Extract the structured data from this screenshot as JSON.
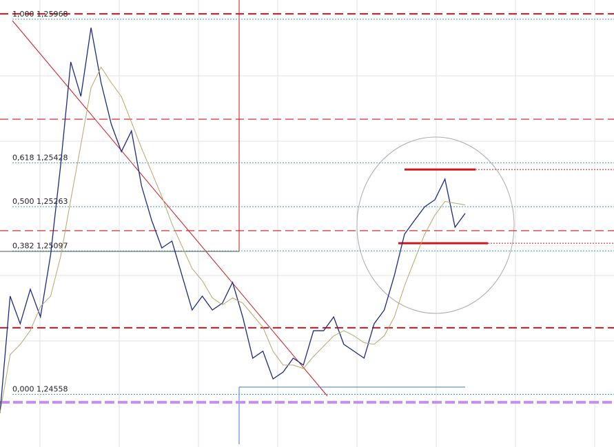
{
  "chart_data": {
    "type": "line",
    "color": "#1a2a80",
    "ma_color": "#b5a86a",
    "values": [
      1.24487,
      1.24927,
      1.24823,
      1.24953,
      1.24849,
      1.25082,
      1.25419,
      1.25807,
      1.25678,
      1.25936,
      1.25729,
      1.25574,
      1.2547,
      1.25548,
      1.25341,
      1.25212,
      1.25108,
      1.25134,
      1.25005,
      1.24875,
      1.24927,
      1.24875,
      1.24901,
      1.24979,
      1.24849,
      1.24694,
      1.2472,
      1.24616,
      1.24642,
      1.24694,
      1.24668,
      1.24797,
      1.24797,
      1.24849,
      1.24746,
      1.2472,
      1.24694,
      1.24823,
      1.24875,
      1.25005,
      1.2516,
      1.25212,
      1.25263,
      1.25289,
      1.25367,
      1.25186,
      1.25238
    ],
    "ylim": [
      1.2436,
      1.2604
    ],
    "fib_levels": [
      {
        "value": 1.25968,
        "label": "1,000 1,25968"
      },
      {
        "value": 1.25428,
        "label": "0,618 1,25428"
      },
      {
        "value": 1.25263,
        "label": "0,500 1,25263"
      },
      {
        "value": 1.25097,
        "label": "0,382 1,25097"
      },
      {
        "value": 1.24558,
        "label": "0,000 1,24558"
      }
    ],
    "fib_color": "#3aa6b0",
    "red_levels": [
      1.25988,
      1.25592,
      1.25173,
      1.24808
    ],
    "red_color": "#d0161c",
    "purple_level": 1.24528,
    "purple_color": "#c58ef0",
    "range_levels": [
      1.25403,
      1.25126
    ]
  }
}
